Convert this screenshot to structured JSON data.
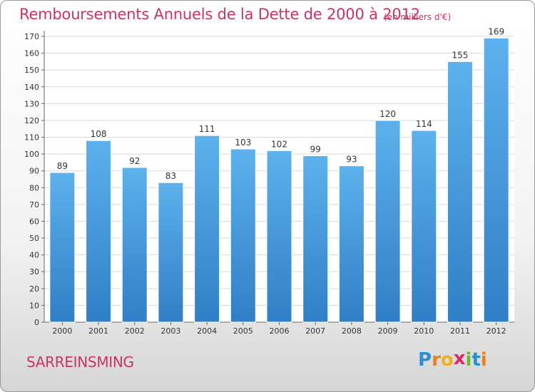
{
  "chart_data": {
    "type": "bar",
    "title": "Remboursements Annuels de la Dette de 2000 à 2012",
    "subtitle": "(en milliers d'€)",
    "categories": [
      "2000",
      "2001",
      "2002",
      "2003",
      "2004",
      "2005",
      "2006",
      "2007",
      "2008",
      "2009",
      "2010",
      "2011",
      "2012"
    ],
    "values": [
      89,
      108,
      92,
      83,
      111,
      103,
      102,
      99,
      93,
      120,
      114,
      155,
      169
    ],
    "ylim": [
      0,
      170
    ],
    "yticks": [
      0,
      10,
      20,
      30,
      40,
      50,
      60,
      70,
      80,
      90,
      100,
      110,
      120,
      130,
      140,
      150,
      160,
      170
    ],
    "grid": true,
    "bar_color": "#3a8fd6",
    "xlabel": "",
    "ylabel": ""
  },
  "footer": {
    "commune": "SARREINSMING",
    "logo": {
      "text": "Proxiti",
      "letters": [
        {
          "char": "P",
          "color": "#2a8fd0"
        },
        {
          "char": "r",
          "color": "#f07c1c"
        },
        {
          "char": "o",
          "color": "#f0b01c"
        },
        {
          "char": "x",
          "color": "#e0266a"
        },
        {
          "char": "i",
          "color": "#6cb82c"
        },
        {
          "char": "t",
          "color": "#2a8fd0"
        },
        {
          "char": "i",
          "color": "#f07c1c"
        }
      ]
    }
  },
  "colors": {
    "title": "#c8336a",
    "axis": "#666666",
    "grid": "#d9d9d9"
  }
}
